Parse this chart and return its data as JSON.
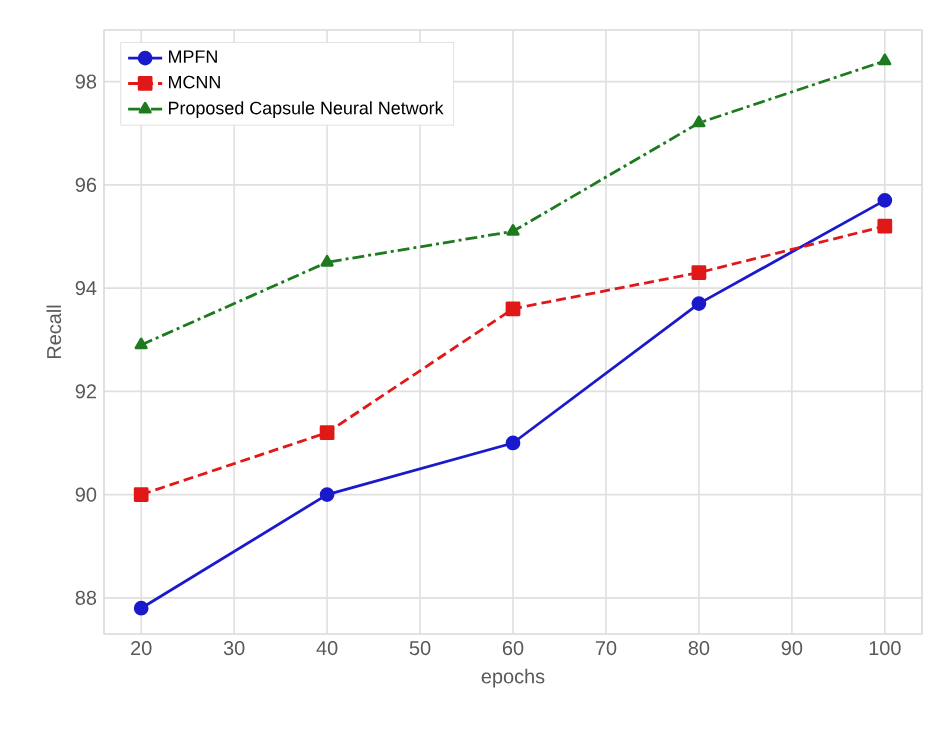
{
  "chart_data": {
    "type": "line",
    "xlabel": "epochs",
    "ylabel": "Recall",
    "x": [
      20,
      40,
      60,
      80,
      100
    ],
    "series": [
      {
        "name": "MPFN",
        "color": "#1a1acc",
        "marker": "circle",
        "line_style": "solid",
        "values": [
          87.8,
          90.0,
          91.0,
          93.7,
          95.7
        ]
      },
      {
        "name": "MCNN",
        "color": "#e01818",
        "marker": "square",
        "line_style": "dashed",
        "values": [
          90.0,
          91.2,
          93.6,
          94.3,
          95.2
        ]
      },
      {
        "name": "Proposed Capsule Neural Network",
        "color": "#1e7a1e",
        "marker": "triangle",
        "line_style": "dashdot",
        "values": [
          92.9,
          94.5,
          95.1,
          97.2,
          98.4
        ]
      }
    ],
    "xlim": [
      16,
      104
    ],
    "ylim": [
      87.3,
      99
    ],
    "xticks": [
      20,
      30,
      40,
      50,
      60,
      70,
      80,
      90,
      100
    ],
    "yticks": [
      88,
      90,
      92,
      94,
      96,
      98
    ],
    "grid": true,
    "legend": "top left"
  }
}
